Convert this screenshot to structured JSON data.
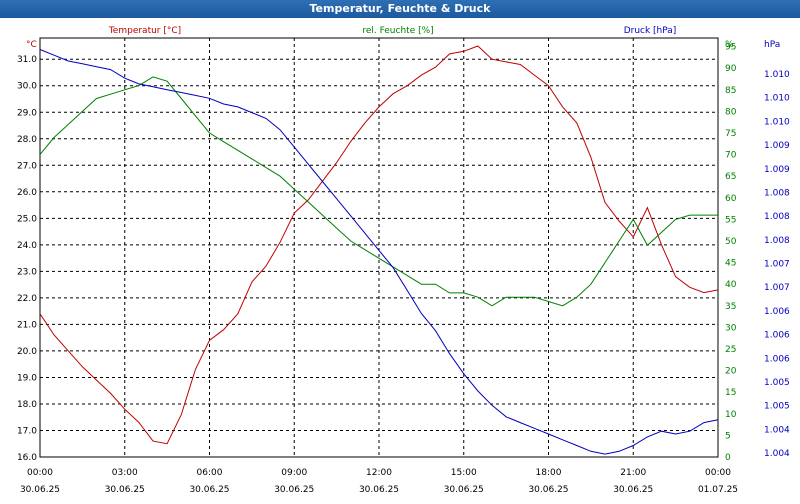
{
  "window": {
    "title": "Temperatur, Feuchte & Druck"
  },
  "chart_data": {
    "type": "line",
    "title": "Temperatur, Feuchte & Druck",
    "colors": {
      "temperature": "#c00000",
      "humidity": "#008000",
      "pressure": "#0000c0",
      "grid": "#000000"
    },
    "grid": true,
    "axes": {
      "left": {
        "label": "°C",
        "ylim": [
          16.0,
          31.8
        ],
        "ticks": [
          "16.0",
          "17.0",
          "18.0",
          "19.0",
          "20.0",
          "21.0",
          "22.0",
          "23.0",
          "24.0",
          "25.0",
          "26.0",
          "27.0",
          "28.0",
          "29.0",
          "30.0",
          "31.0"
        ]
      },
      "right1": {
        "label": "%",
        "ylim": [
          0,
          97
        ],
        "ticks": [
          "0",
          "5",
          "10",
          "15",
          "20",
          "25",
          "30",
          "35",
          "40",
          "45",
          "50",
          "55",
          "60",
          "65",
          "70",
          "75",
          "80",
          "85",
          "90",
          "95"
        ]
      },
      "right2": {
        "label": "hPa",
        "ticks": [
          "1.004",
          "1.004",
          "1.005",
          "1.005",
          "1.006",
          "1.006",
          "1.006",
          "1.007",
          "1.007",
          "1.008",
          "1.008",
          "1.008",
          "1.009",
          "1.009",
          "1.010",
          "1.010",
          "1.010"
        ]
      },
      "x": {
        "ticks": [
          {
            "time": "00:00",
            "date": "30.06.25"
          },
          {
            "time": "03:00",
            "date": "30.06.25"
          },
          {
            "time": "06:00",
            "date": "30.06.25"
          },
          {
            "time": "09:00",
            "date": "30.06.25"
          },
          {
            "time": "12:00",
            "date": "30.06.25"
          },
          {
            "time": "15:00",
            "date": "30.06.25"
          },
          {
            "time": "18:00",
            "date": "30.06.25"
          },
          {
            "time": "21:00",
            "date": "30.06.25"
          },
          {
            "time": "00:00",
            "date": "01.07.25"
          }
        ]
      }
    },
    "x_hours": [
      0,
      0.5,
      1,
      1.5,
      2,
      2.5,
      3,
      3.5,
      4,
      4.5,
      5,
      5.5,
      6,
      6.5,
      7,
      7.5,
      8,
      8.5,
      9,
      9.5,
      10,
      10.5,
      11,
      11.5,
      12,
      12.5,
      13,
      13.5,
      14,
      14.5,
      15,
      15.5,
      16,
      16.5,
      17,
      17.5,
      18,
      18.5,
      19,
      19.5,
      20,
      20.5,
      21,
      21.5,
      22,
      22.5,
      23,
      23.5,
      24
    ],
    "series": [
      {
        "name": "Temperatur [°C]",
        "axis": "left",
        "values": [
          21.4,
          20.6,
          20.0,
          19.4,
          18.9,
          18.4,
          17.8,
          17.3,
          16.6,
          16.5,
          17.6,
          19.3,
          20.4,
          20.8,
          21.4,
          22.6,
          23.2,
          24.1,
          25.2,
          25.7,
          26.4,
          27.1,
          27.9,
          28.6,
          29.2,
          29.7,
          30.0,
          30.4,
          30.7,
          31.2,
          31.3,
          31.5,
          31.0,
          30.9,
          30.8,
          30.4,
          30.0,
          29.2,
          28.6,
          27.3,
          25.6,
          24.9,
          24.3,
          25.4,
          24.0,
          22.8,
          22.4,
          22.2,
          22.3
        ]
      },
      {
        "name": "rel. Feuchte [%]",
        "axis": "right1",
        "values": [
          70,
          74,
          77,
          80,
          83,
          84,
          85,
          86,
          88,
          87,
          83,
          79,
          75,
          73,
          71,
          69,
          67,
          65,
          62,
          59,
          56,
          53,
          50,
          48,
          46,
          44,
          42,
          40,
          40,
          38,
          38,
          37,
          35,
          37,
          37,
          37,
          36,
          35,
          37,
          40,
          45,
          50,
          55,
          49,
          52,
          55,
          56,
          56,
          56
        ]
      },
      {
        "name": "Druck [hPa]",
        "axis": "right2",
        "values": [
          1.0107,
          1.0106,
          1.0105,
          1.01045,
          1.0104,
          1.01035,
          1.0102,
          1.0101,
          1.01005,
          1.01,
          1.00995,
          1.0099,
          1.00985,
          1.00975,
          1.0097,
          1.0096,
          1.0095,
          1.0093,
          1.009,
          1.0087,
          1.0084,
          1.0081,
          1.0078,
          1.0075,
          1.0072,
          1.0069,
          1.0065,
          1.0061,
          1.0058,
          1.0054,
          1.00505,
          1.00475,
          1.0045,
          1.0043,
          1.0042,
          1.0041,
          1.004,
          1.0039,
          1.0038,
          1.0037,
          1.00365,
          1.0037,
          1.0038,
          1.00395,
          1.00405,
          1.004,
          1.00405,
          1.0042,
          1.00425
        ]
      }
    ]
  }
}
